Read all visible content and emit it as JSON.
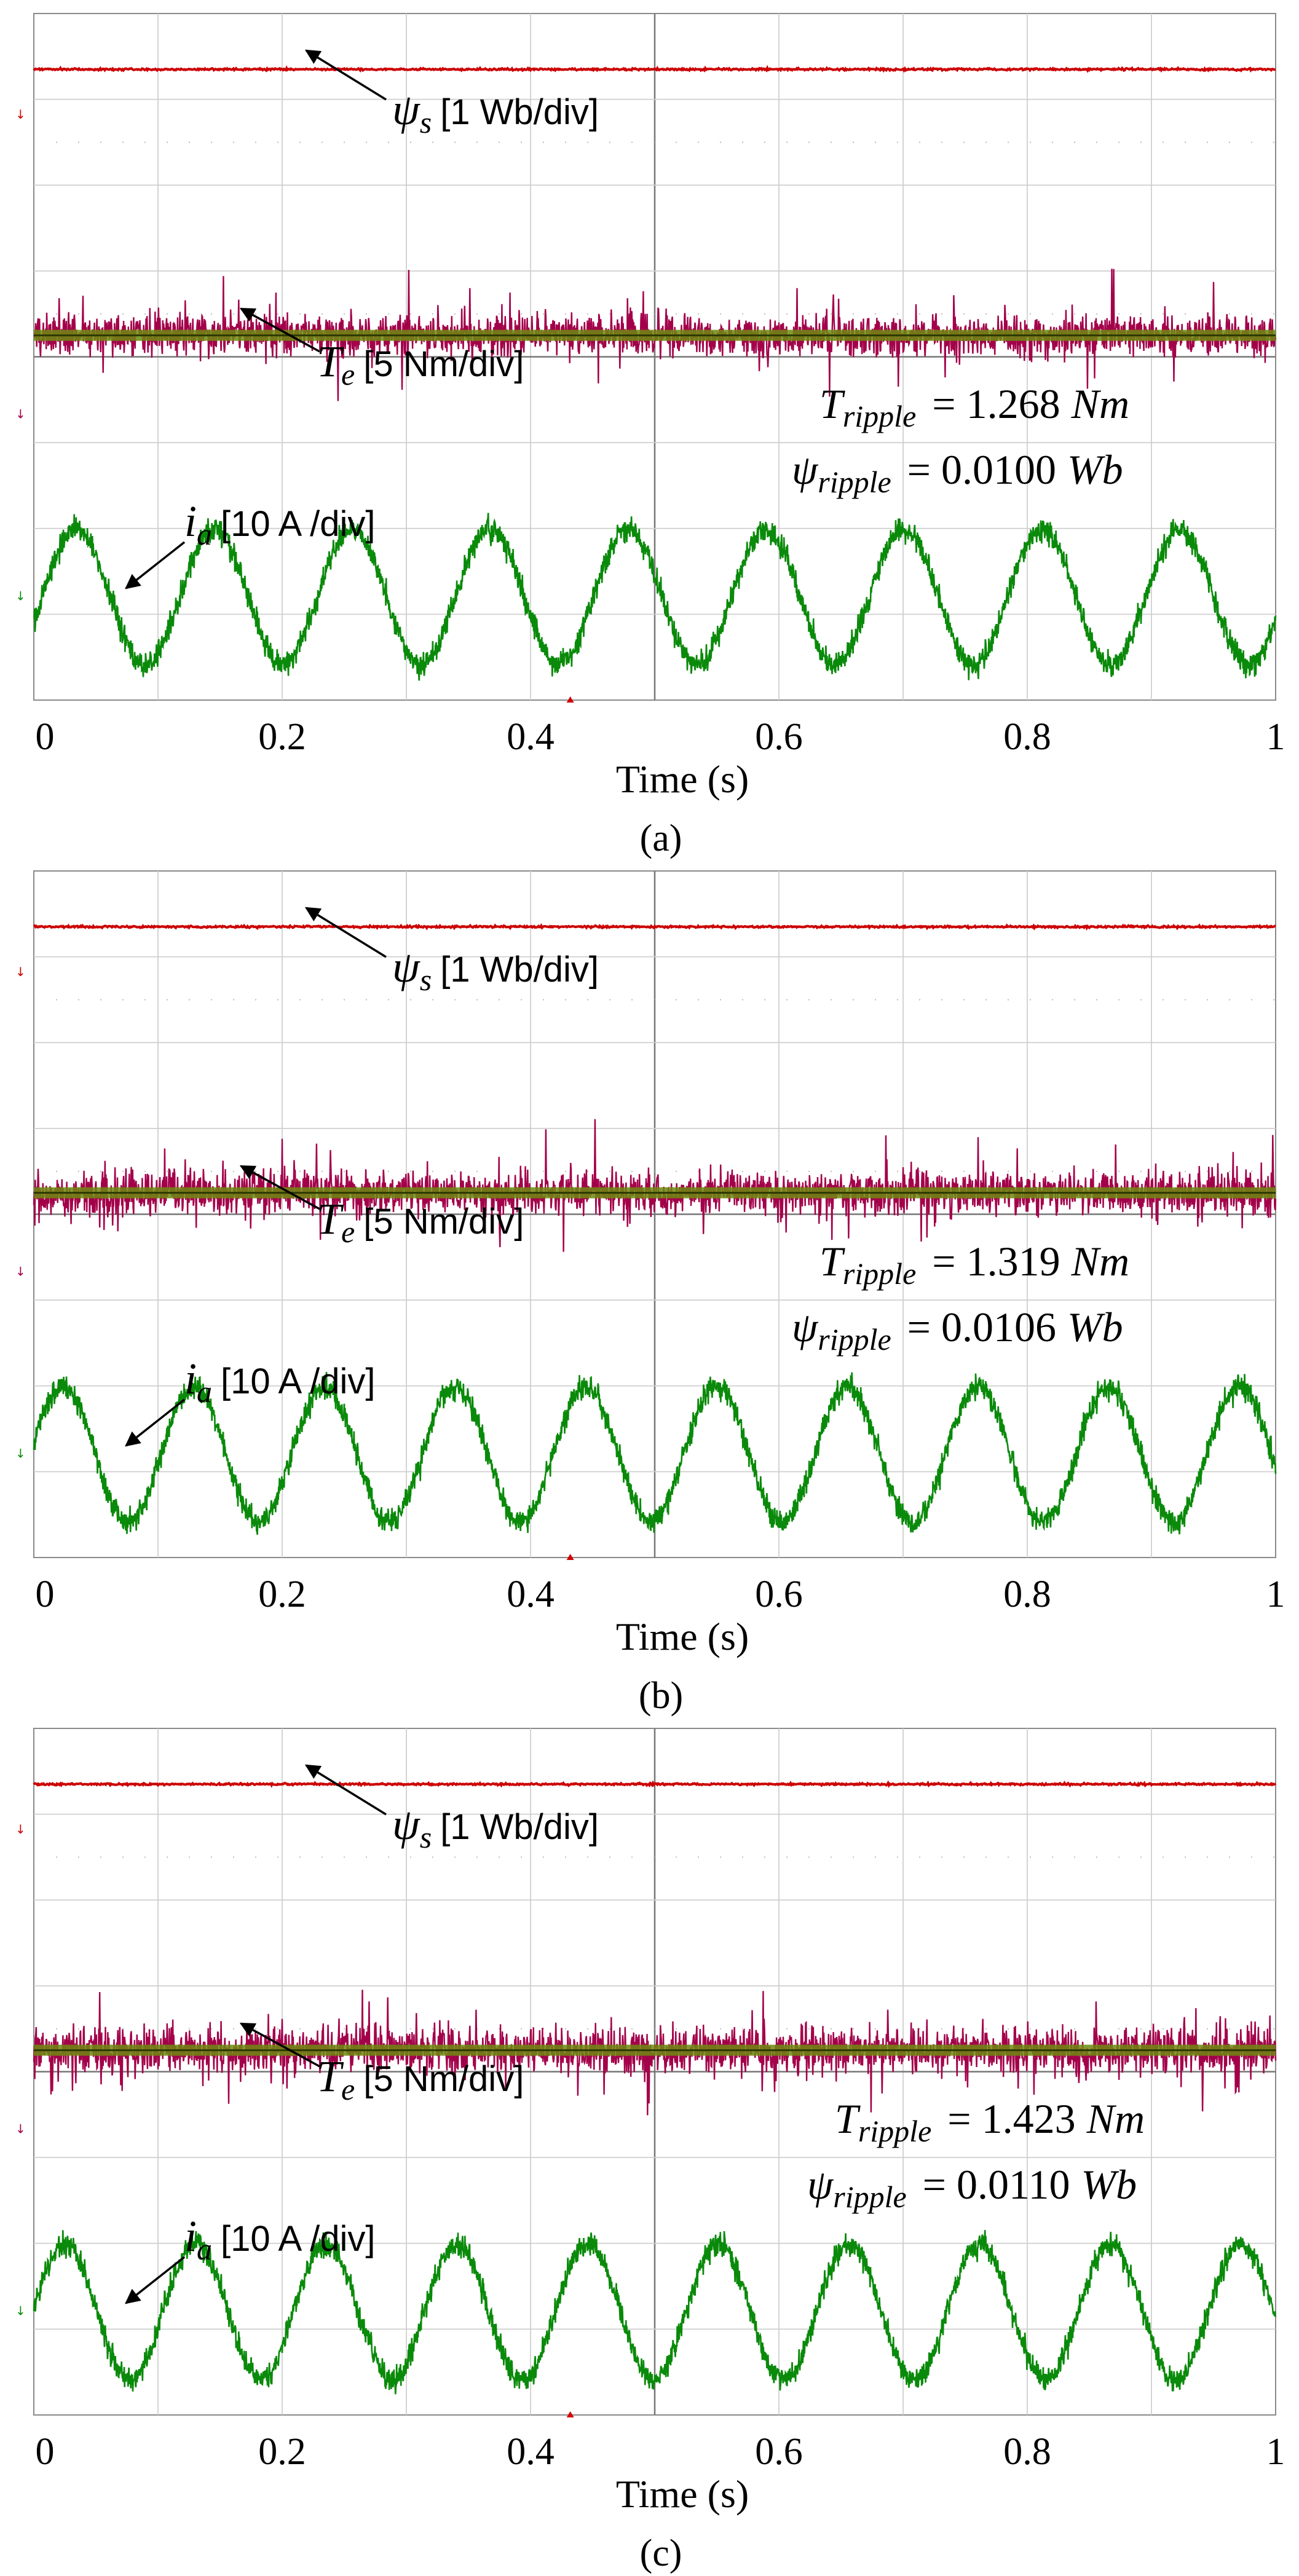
{
  "chart_data": [
    {
      "type": "line",
      "panel": "a",
      "caption": "(a)",
      "xlabel": "Time (s)",
      "xlim": [
        0,
        1
      ],
      "xticks": [
        "0",
        "0.2",
        "0.4",
        "0.6",
        "0.8",
        "1"
      ],
      "series": [
        {
          "name": "psi_s",
          "label_symbol": "ψ",
          "label_sub": "s",
          "label_text": "[1 Wb/div]",
          "color": "#cc0000",
          "mean_div": 3.35,
          "noise_div": 0.03
        },
        {
          "name": "T_e",
          "label_symbol": "T",
          "label_sub": "e",
          "label_text": "[5 Nm/div]",
          "color": "#a3004a",
          "mean_div": 0.0,
          "noise_div": 0.55
        },
        {
          "name": "i_a",
          "label_symbol": "i",
          "label_sub": "a",
          "label_text": "[10 A /div]",
          "color": "#0a8a0a",
          "amplitude_div": 0.75,
          "frequency_hz": 9.0,
          "phase_deg": -20,
          "noise_div": 0.28
        }
      ],
      "annotations": {
        "T_ripple": "= 1.268",
        "T_ripple_unit": "Nm",
        "psi_ripple": "= 0.0100",
        "psi_ripple_unit": "Wb"
      }
    },
    {
      "type": "line",
      "panel": "b",
      "caption": "(b)",
      "xlabel": "Time (s)",
      "xlim": [
        0,
        1
      ],
      "xticks": [
        "0",
        "0.2",
        "0.4",
        "0.6",
        "0.8",
        "1"
      ],
      "series": [
        {
          "name": "psi_s",
          "label_symbol": "ψ",
          "label_sub": "s",
          "label_text": "[1 Wb/div]",
          "color": "#cc0000",
          "mean_div": 3.35,
          "noise_div": 0.03
        },
        {
          "name": "T_e",
          "label_symbol": "T",
          "label_sub": "e",
          "label_text": "[5 Nm/div]",
          "color": "#a3004a",
          "mean_div": 0.0,
          "noise_div": 0.58
        },
        {
          "name": "i_a",
          "label_symbol": "i",
          "label_sub": "a",
          "label_text": "[10 A /div]",
          "color": "#0a8a0a",
          "amplitude_div": 0.75,
          "frequency_hz": 9.5,
          "phase_deg": 10,
          "noise_div": 0.28
        }
      ],
      "annotations": {
        "T_ripple": "= 1.319",
        "T_ripple_unit": "Nm",
        "psi_ripple": "= 0.0106",
        "psi_ripple_unit": "Wb"
      }
    },
    {
      "type": "line",
      "panel": "c",
      "caption": "(c)",
      "xlabel": "Time (s)",
      "xlim": [
        0,
        1
      ],
      "xticks": [
        "0",
        "0.2",
        "0.4",
        "0.6",
        "0.8",
        "1"
      ],
      "series": [
        {
          "name": "psi_s",
          "label_symbol": "ψ",
          "label_sub": "s",
          "label_text": "[1 Wb/div]",
          "color": "#cc0000",
          "mean_div": 3.35,
          "noise_div": 0.03
        },
        {
          "name": "T_e",
          "label_symbol": "T",
          "label_sub": "e",
          "label_text": "[5 Nm/div]",
          "color": "#a3004a",
          "mean_div": 0.0,
          "noise_div": 0.62
        },
        {
          "name": "i_a",
          "label_symbol": "i",
          "label_sub": "a",
          "label_text": "[10 A /div]",
          "color": "#0a8a0a",
          "amplitude_div": 0.75,
          "frequency_hz": 9.5,
          "phase_deg": 5,
          "noise_div": 0.28
        }
      ],
      "annotations": {
        "T_ripple": "= 1.423",
        "T_ripple_unit": "Nm",
        "psi_ripple": "= 0.0110",
        "psi_ripple_unit": "Wb"
      }
    }
  ]
}
